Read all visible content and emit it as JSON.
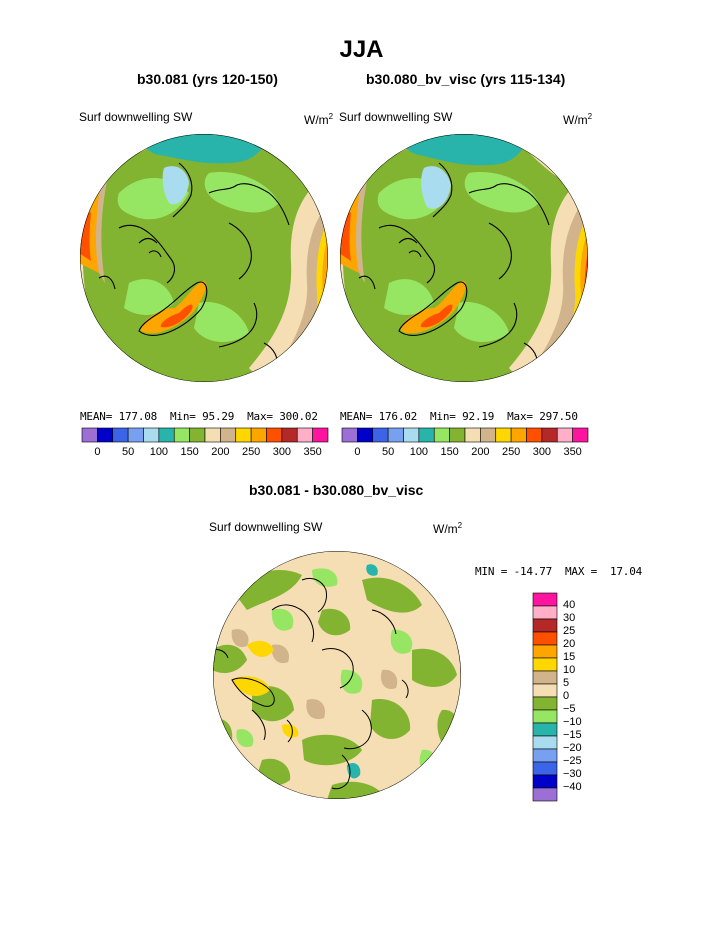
{
  "page": {
    "title": "JJA",
    "diff_title": "b30.081 - b30.080_bv_visc"
  },
  "panels": [
    {
      "title": "b30.081 (yrs 120-150)",
      "field": "Surf downwelling SW",
      "units_base": "W/m",
      "units_sup": "2",
      "stats": {
        "mean_label": "MEAN=",
        "mean": "177.08",
        "min_label": "Min=",
        "min": "95.29",
        "max_label": "Max=",
        "max": "300.02"
      }
    },
    {
      "title": "b30.080_bv_visc (yrs 115-134)",
      "field": "Surf downwelling SW",
      "units_base": "W/m",
      "units_sup": "2",
      "stats": {
        "mean_label": "MEAN=",
        "mean": "176.02",
        "min_label": "Min=",
        "min": "92.19",
        "max_label": "Max=",
        "max": "297.50"
      }
    },
    {
      "title": "b30.081 - b30.080_bv_visc",
      "field": "Surf downwelling SW",
      "units_base": "W/m",
      "units_sup": "2",
      "stats": {
        "min_label": "MIN =",
        "min": "-14.77",
        "max_label": "MAX =",
        "max": "17.04"
      }
    }
  ],
  "colorbar_main": {
    "colors": [
      "#9b6fd6",
      "#0000c8",
      "#3c64e6",
      "#78a0f0",
      "#aadcf0",
      "#28b4aa",
      "#96e664",
      "#82b432",
      "#f5deb3",
      "#d2b48c",
      "#ffd700",
      "#ffa500",
      "#ff5000",
      "#b42828",
      "#ffafc8",
      "#ff14a0"
    ],
    "tick_labels": [
      "0",
      "50",
      "100",
      "150",
      "200",
      "250",
      "300",
      "350"
    ]
  },
  "colorbar_diff": {
    "colors": [
      "#ff14a0",
      "#ffafc8",
      "#b42828",
      "#ff5000",
      "#ffa500",
      "#ffd700",
      "#d2b48c",
      "#f5deb3",
      "#82b432",
      "#96e664",
      "#28b4aa",
      "#aadcf0",
      "#78a0f0",
      "#3c64e6",
      "#0000c8",
      "#9b6fd6"
    ],
    "tick_labels": [
      "40",
      "30",
      "25",
      "20",
      "15",
      "10",
      "5",
      "0",
      "−5",
      "−10",
      "−15",
      "−20",
      "−25",
      "−30",
      "−40"
    ]
  },
  "chart_data": [
    {
      "type": "heatmap",
      "projection": "north-polar-stereographic",
      "title": "b30.081 (yrs 120-150)",
      "variable": "Surf downwelling SW",
      "units": "W/m2",
      "mean": 177.08,
      "min": 95.29,
      "max": 300.02,
      "levels": [
        0,
        25,
        50,
        75,
        100,
        125,
        150,
        175,
        200,
        225,
        250,
        275,
        300,
        325,
        350
      ]
    },
    {
      "type": "heatmap",
      "projection": "north-polar-stereographic",
      "title": "b30.080_bv_visc (yrs 115-134)",
      "variable": "Surf downwelling SW",
      "units": "W/m2",
      "mean": 176.02,
      "min": 92.19,
      "max": 297.5,
      "levels": [
        0,
        25,
        50,
        75,
        100,
        125,
        150,
        175,
        200,
        225,
        250,
        275,
        300,
        325,
        350
      ]
    },
    {
      "type": "heatmap",
      "projection": "north-polar-stereographic",
      "title": "b30.081 - b30.080_bv_visc",
      "variable": "Surf downwelling SW",
      "units": "W/m2",
      "min": -14.77,
      "max": 17.04,
      "levels": [
        -40,
        -30,
        -25,
        -20,
        -15,
        -10,
        -5,
        0,
        5,
        10,
        15,
        20,
        25,
        30,
        40
      ]
    }
  ]
}
